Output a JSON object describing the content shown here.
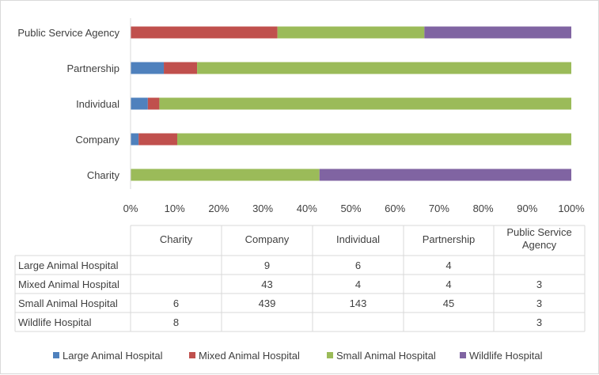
{
  "chart_data": {
    "type": "bar",
    "orientation": "horizontal",
    "stacked": "percent",
    "categories": [
      "Charity",
      "Company",
      "Individual",
      "Partnership",
      "Public Service Agency"
    ],
    "series": [
      {
        "name": "Large Animal Hospital",
        "color": "#4f81bd",
        "values": [
          null,
          9,
          6,
          4,
          null
        ]
      },
      {
        "name": "Mixed Animal Hospital",
        "color": "#c0504d",
        "values": [
          null,
          43,
          4,
          4,
          3
        ]
      },
      {
        "name": "Small Animal Hospital",
        "color": "#9bbb59",
        "values": [
          6,
          439,
          143,
          45,
          3
        ]
      },
      {
        "name": "Wildlife Hospital",
        "color": "#8064a2",
        "values": [
          8,
          null,
          null,
          null,
          3
        ]
      }
    ],
    "xticks": [
      "0%",
      "10%",
      "20%",
      "30%",
      "40%",
      "50%",
      "60%",
      "70%",
      "80%",
      "90%",
      "100%"
    ],
    "xlim": [
      0,
      100
    ],
    "grid": false,
    "legend": "bottom",
    "data_table": true
  }
}
